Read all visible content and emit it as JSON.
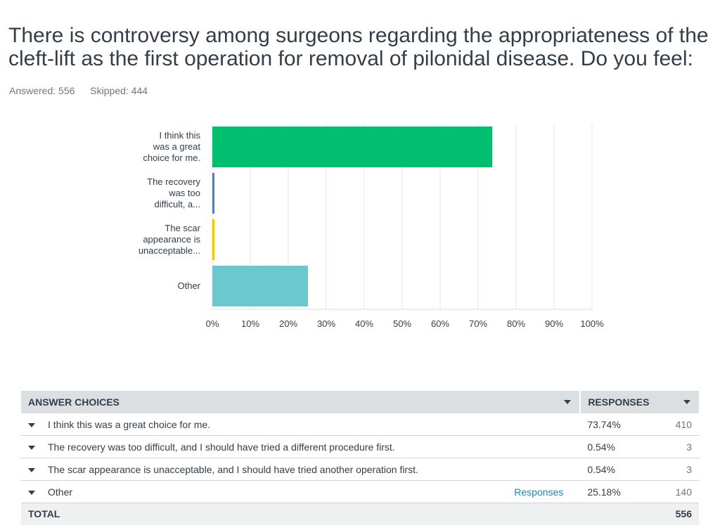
{
  "question": {
    "title": "There is controversy among surgeons regarding the appropriateness of the cleft-lift as the first operation for removal of pilonidal disease. Do you feel:",
    "answered_label": "Answered: 556",
    "skipped_label": "Skipped: 444"
  },
  "chart_data": {
    "type": "bar",
    "orientation": "horizontal",
    "categories": [
      "I think this was a great choice for me.",
      "The recovery was too difficult, a...",
      "The scar appearance is unacceptable...",
      "Other"
    ],
    "category_label_lines": [
      [
        "I think this",
        "was a great",
        "choice for me."
      ],
      [
        "The recovery",
        "was too",
        "difficult, a..."
      ],
      [
        "The scar",
        "appearance is",
        "unacceptable..."
      ],
      [
        "Other"
      ]
    ],
    "values": [
      73.74,
      0.54,
      0.54,
      25.18
    ],
    "colors": [
      "#00bf6f",
      "#507cb6",
      "#f9be00",
      "#6bc8cd"
    ],
    "xlim": [
      0,
      100
    ],
    "x_ticks": [
      "0%",
      "10%",
      "20%",
      "30%",
      "40%",
      "50%",
      "60%",
      "70%",
      "80%",
      "90%",
      "100%"
    ],
    "grid": true,
    "xlabel": "",
    "ylabel": ""
  },
  "table": {
    "header_choice": "ANSWER CHOICES",
    "header_responses": "RESPONSES",
    "rows": [
      {
        "choice": "I think this was a great choice for me.",
        "percent": "73.74%",
        "count": "410"
      },
      {
        "choice": "The recovery was too difficult, and I should have tried a different procedure first.",
        "percent": "0.54%",
        "count": "3"
      },
      {
        "choice": "The scar appearance is unacceptable, and I should have tried another operation first.",
        "percent": "0.54%",
        "count": "3"
      },
      {
        "choice": "Other",
        "link": "Responses",
        "percent": "25.18%",
        "count": "140"
      }
    ],
    "total_label": "TOTAL",
    "total_count": "556"
  }
}
